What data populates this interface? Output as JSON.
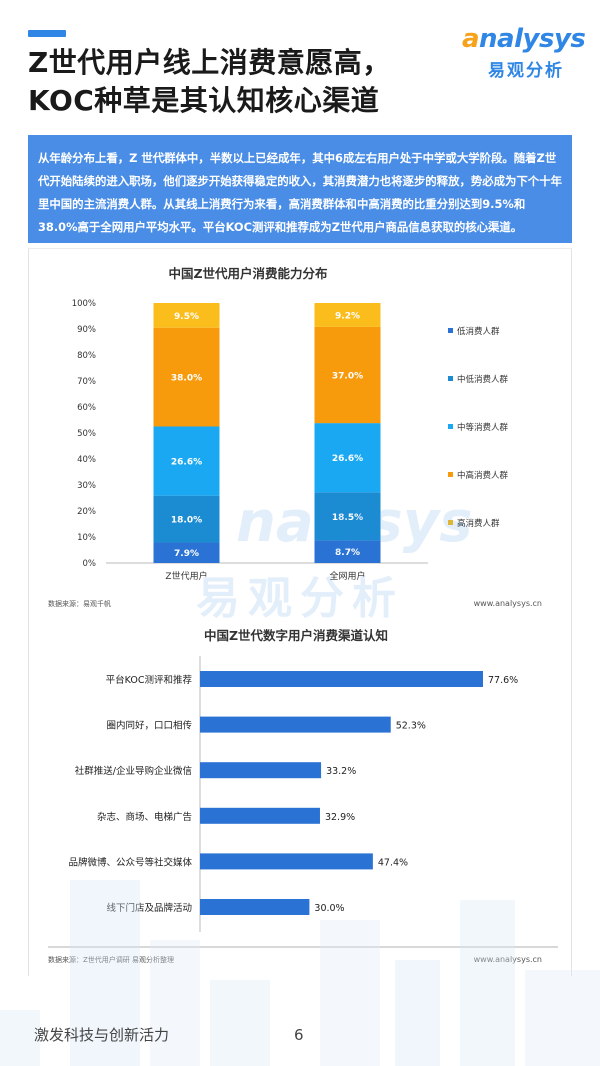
{
  "header": {
    "title_line1": "Z世代用户线上消费意愿高，",
    "title_line2": "KOC种草是其认知核心渠道",
    "logo_en_a": "a",
    "logo_en_rest": "nalysys",
    "logo_cn": "易观分析"
  },
  "summary": "从年龄分布上看，Z 世代群体中，半数以上已经成年，其中6成左右用户处于中学或大学阶段。随着Z世代开始陆续的进入职场，他们逐步开始获得稳定的收入，其消费潜力也将逐步的释放，势必成为下个十年里中国的主流消费人群。从其线上消费行为来看，高消费群体和中高消费的比重分别达到9.5%和38.0%高于全网用户平均水平。平台KOC测评和推荐成为Z世代用户商品信息获取的核心渠道。",
  "chart_data": [
    {
      "type": "bar",
      "stacked": true,
      "title": "中国Z世代用户消费能力分布",
      "categories": [
        "Z世代用户",
        "全网用户"
      ],
      "ylim": [
        0,
        100
      ],
      "yticks": [
        "0%",
        "10%",
        "20%",
        "30%",
        "40%",
        "50%",
        "60%",
        "70%",
        "80%",
        "90%",
        "100%"
      ],
      "legend_position": "right",
      "series": [
        {
          "name": "低消费人群",
          "values": [
            7.9,
            8.7
          ],
          "labels": [
            "7.9%",
            "8.7%"
          ],
          "color": "#2a72d4"
        },
        {
          "name": "中低消费人群",
          "values": [
            18.0,
            18.5
          ],
          "labels": [
            "18.0%",
            "18.5%"
          ],
          "color": "#1b8bd2"
        },
        {
          "name": "中等消费人群",
          "values": [
            26.6,
            26.6
          ],
          "labels": [
            "26.6%",
            "26.6%"
          ],
          "color": "#1aa8f2"
        },
        {
          "name": "中高消费人群",
          "values": [
            38.0,
            37.0
          ],
          "labels": [
            "38.0%",
            "37.0%"
          ],
          "color": "#f79a0c"
        },
        {
          "name": "高消费人群",
          "values": [
            9.5,
            9.2
          ],
          "labels": [
            "9.5%",
            "9.2%"
          ],
          "color": "#fbbd1c"
        }
      ],
      "source": "数据来源：易观千帆",
      "site": "www.analysys.cn"
    },
    {
      "type": "bar",
      "orientation": "horizontal",
      "title": "中国Z世代数字用户消费渠道认知",
      "categories": [
        "平台KOC测评和推荐",
        "圈内同好，口口相传",
        "社群推送/企业导购企业微信",
        "杂志、商场、电梯广告",
        "品牌微博、公众号等社交媒体",
        "线下门店及品牌活动"
      ],
      "values": [
        77.6,
        52.3,
        33.2,
        32.9,
        47.4,
        30.0
      ],
      "labels": [
        "77.6%",
        "52.3%",
        "33.2%",
        "32.9%",
        "47.4%",
        "30.0%"
      ],
      "color": "#2a72d4",
      "source": "数据来源：Z世代用户调研 易观分析整理",
      "site": "www.analysys.cn"
    }
  ],
  "watermark": {
    "en": "nalysys",
    "cn": "易观分析"
  },
  "footer": {
    "text": "激发科技与创新活力",
    "page": "6"
  }
}
